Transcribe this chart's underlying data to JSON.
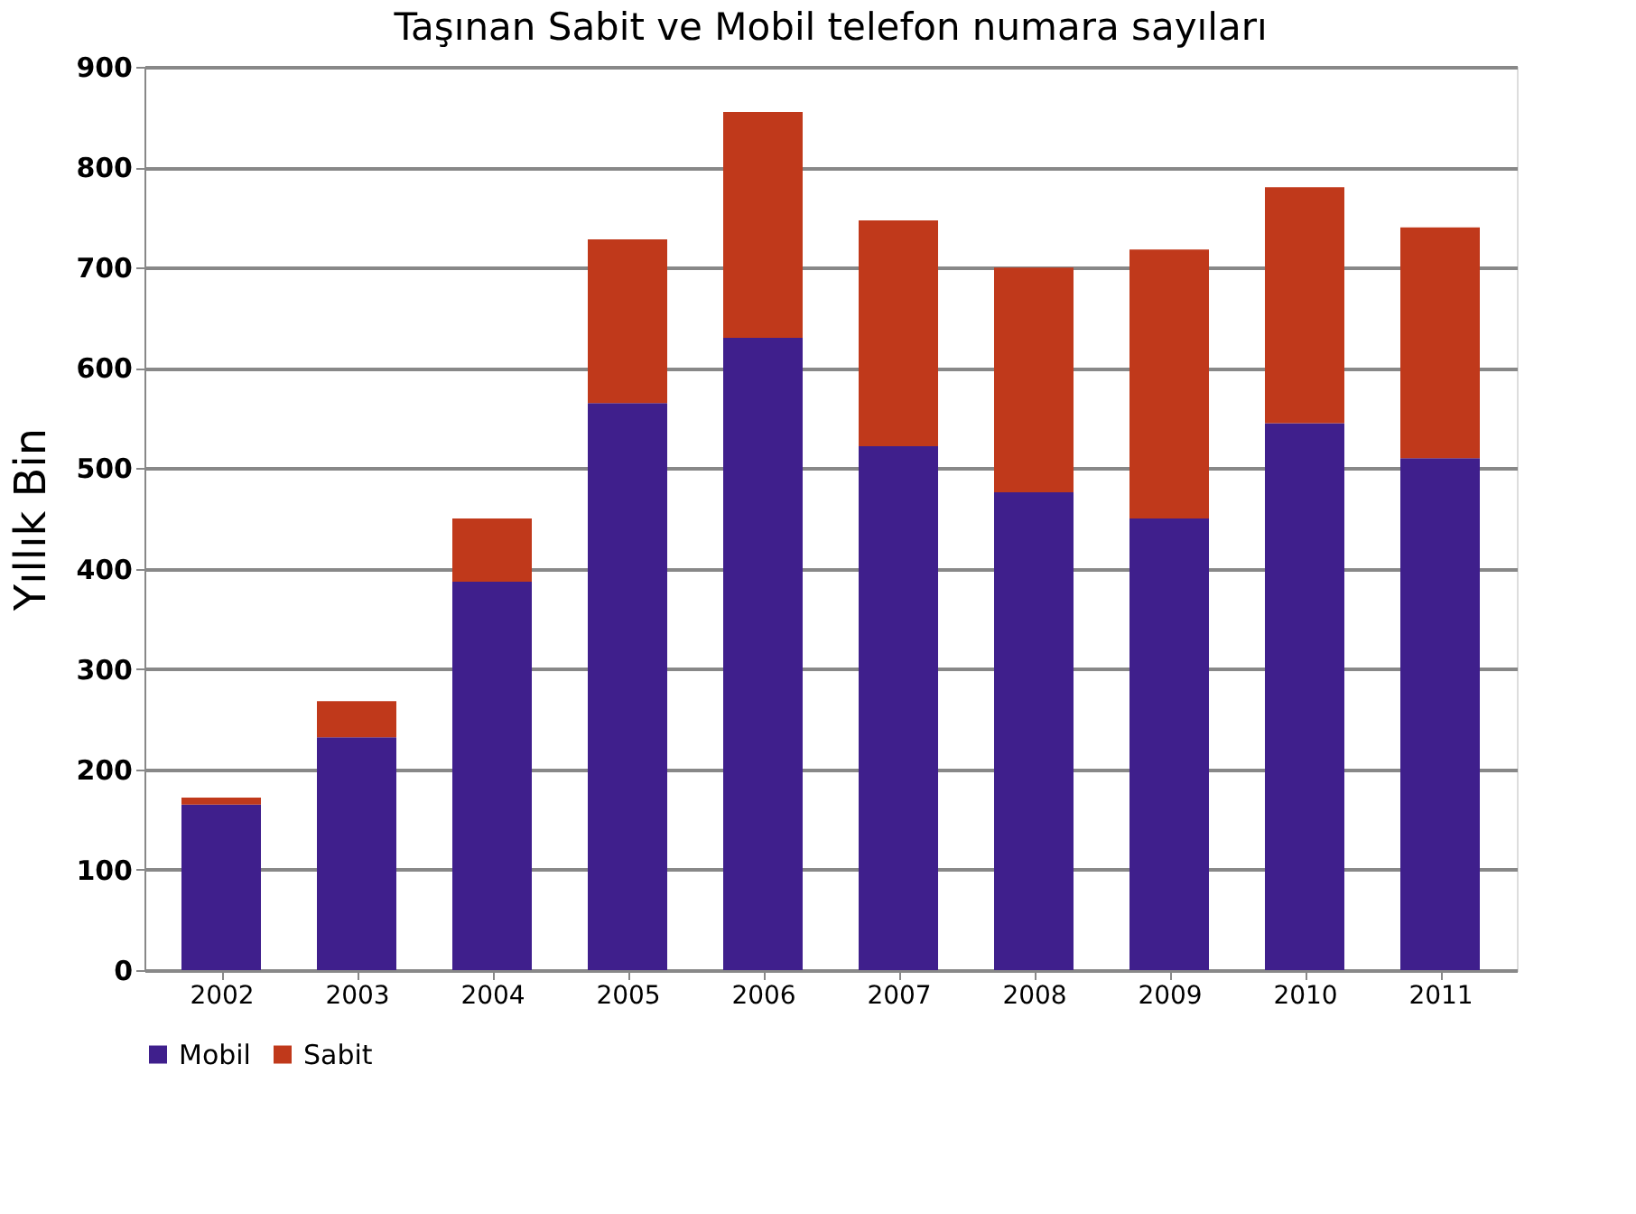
{
  "chart_data": {
    "type": "bar",
    "title": "Taşınan Sabit ve Mobil telefon numara sayıları",
    "ylabel": "Yıllık Bin",
    "categories": [
      "2002",
      "2003",
      "2004",
      "2005",
      "2006",
      "2007",
      "2008",
      "2009",
      "2010",
      "2011"
    ],
    "series": [
      {
        "name": "Mobil",
        "color": "#3f1f8c",
        "values": [
          165,
          232,
          387,
          565,
          630,
          522,
          476,
          450,
          545,
          510
        ]
      },
      {
        "name": "Sabit",
        "color": "#c0391b",
        "values": [
          7,
          36,
          63,
          163,
          225,
          225,
          224,
          268,
          235,
          230
        ]
      }
    ],
    "stacked": true,
    "ylim": [
      0,
      900
    ],
    "yticks": [
      0,
      100,
      200,
      300,
      400,
      500,
      600,
      700,
      800,
      900
    ],
    "grid": "y",
    "legend": "bottom"
  }
}
